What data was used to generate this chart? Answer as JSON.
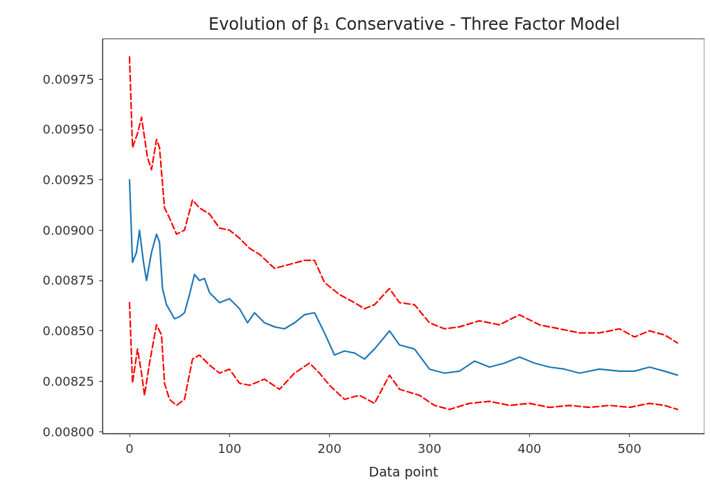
{
  "chart_data": {
    "type": "line",
    "title": "Evolution of β₁ Conservative - Three Factor Model",
    "xlabel": "Data point",
    "xlim": [
      -27,
      575
    ],
    "xticks": [
      0,
      100,
      200,
      300,
      400,
      500
    ],
    "ylim": [
      0.00799,
      0.00995
    ],
    "yticks": [
      {
        "value": 0.008,
        "label": "0.00800"
      },
      {
        "value": 0.00825,
        "label": "0.00825"
      },
      {
        "value": 0.0085,
        "label": "0.00850"
      },
      {
        "value": 0.00875,
        "label": "0.00875"
      },
      {
        "value": 0.009,
        "label": "0.00900"
      },
      {
        "value": 0.00925,
        "label": "0.00925"
      },
      {
        "value": 0.0095,
        "label": "0.00950"
      },
      {
        "value": 0.00975,
        "label": "0.00975"
      }
    ],
    "grid": false,
    "marker": "none",
    "series": [
      {
        "color": "#1f77b4",
        "line_style": "solid",
        "x": [
          0,
          3,
          7,
          10,
          14,
          17,
          22,
          27,
          30,
          33,
          37,
          45,
          50,
          55,
          60,
          65,
          70,
          75,
          80,
          90,
          100,
          110,
          118,
          125,
          135,
          145,
          155,
          165,
          175,
          185,
          195,
          205,
          215,
          225,
          235,
          245,
          260,
          270,
          285,
          300,
          315,
          330,
          345,
          360,
          375,
          390,
          405,
          420,
          435,
          450,
          470,
          490,
          505,
          520,
          535,
          548
        ],
        "values": [
          0.00925,
          0.00884,
          0.00889,
          0.009,
          0.00884,
          0.00875,
          0.00889,
          0.00898,
          0.00894,
          0.00871,
          0.00863,
          0.00856,
          0.00857,
          0.00859,
          0.00868,
          0.00878,
          0.00875,
          0.00876,
          0.00869,
          0.00864,
          0.00866,
          0.00861,
          0.00854,
          0.00859,
          0.00854,
          0.00852,
          0.00851,
          0.00854,
          0.00858,
          0.00859,
          0.00849,
          0.00838,
          0.0084,
          0.00839,
          0.00836,
          0.00841,
          0.0085,
          0.00843,
          0.00841,
          0.00831,
          0.00829,
          0.0083,
          0.00835,
          0.00832,
          0.00834,
          0.00837,
          0.00834,
          0.00832,
          0.00831,
          0.00829,
          0.00831,
          0.0083,
          0.0083,
          0.00832,
          0.0083,
          0.00828
        ]
      },
      {
        "color": "#ff0000",
        "line_style": "dashed",
        "x": [
          0,
          3,
          8,
          12,
          18,
          22,
          27,
          30,
          35,
          40,
          47,
          55,
          63,
          70,
          80,
          90,
          100,
          110,
          120,
          130,
          145,
          160,
          175,
          185,
          195,
          210,
          225,
          235,
          245,
          260,
          270,
          285,
          300,
          315,
          330,
          350,
          370,
          390,
          410,
          430,
          450,
          470,
          490,
          505,
          520,
          535,
          548
        ],
        "values": [
          0.00986,
          0.00941,
          0.00948,
          0.00956,
          0.00936,
          0.0093,
          0.00945,
          0.00941,
          0.00911,
          0.00906,
          0.00898,
          0.009,
          0.00915,
          0.00911,
          0.00908,
          0.00901,
          0.009,
          0.00896,
          0.00891,
          0.00888,
          0.00881,
          0.00883,
          0.00885,
          0.00885,
          0.00874,
          0.00868,
          0.00864,
          0.00861,
          0.00863,
          0.00871,
          0.00864,
          0.00863,
          0.00854,
          0.00851,
          0.00852,
          0.00855,
          0.00853,
          0.00858,
          0.00853,
          0.00851,
          0.00849,
          0.00849,
          0.00851,
          0.00847,
          0.0085,
          0.00848,
          0.00844
        ]
      },
      {
        "color": "#ff0000",
        "line_style": "dashed",
        "x": [
          0,
          3,
          8,
          12,
          15,
          20,
          27,
          32,
          35,
          40,
          47,
          55,
          63,
          70,
          80,
          90,
          100,
          110,
          120,
          135,
          150,
          165,
          180,
          190,
          200,
          215,
          230,
          245,
          260,
          270,
          290,
          305,
          320,
          340,
          360,
          380,
          400,
          420,
          440,
          460,
          480,
          500,
          520,
          535,
          548
        ],
        "values": [
          0.00864,
          0.00824,
          0.00841,
          0.00829,
          0.00818,
          0.00834,
          0.00853,
          0.00848,
          0.00824,
          0.00816,
          0.00813,
          0.00816,
          0.00836,
          0.00838,
          0.00833,
          0.00829,
          0.00831,
          0.00824,
          0.00823,
          0.00826,
          0.00821,
          0.00829,
          0.00834,
          0.00829,
          0.00823,
          0.00816,
          0.00818,
          0.00814,
          0.00828,
          0.00821,
          0.00818,
          0.00813,
          0.00811,
          0.00814,
          0.00815,
          0.00813,
          0.00814,
          0.00812,
          0.00813,
          0.00812,
          0.00813,
          0.00812,
          0.00814,
          0.00813,
          0.00811
        ]
      }
    ]
  }
}
